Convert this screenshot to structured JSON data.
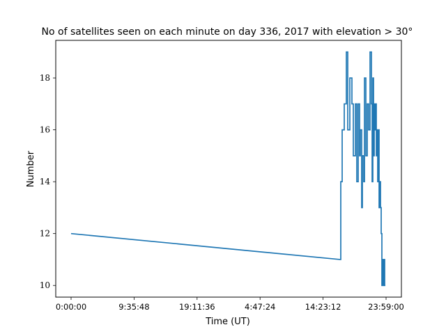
{
  "chart_data": {
    "type": "line",
    "title": "No of satellites seen on each minute on day 336, 2017 with elevation > 30°",
    "xlabel": "Time (UT)",
    "ylabel": "Number",
    "x_tick_labels": [
      "0:00:00",
      "9:35:48",
      "19:11:36",
      "4:47:24",
      "14:23:12",
      "23:59:00"
    ],
    "y_ticks": [
      10,
      12,
      14,
      16,
      18
    ],
    "y_tick_labels": [
      "10",
      "12",
      "14",
      "16",
      "18"
    ],
    "ylim": [
      9.55,
      19.45
    ],
    "grid": false,
    "legend": "none",
    "color": "#1f77b4",
    "series": [
      {
        "values": [
          12,
          11,
          14,
          16,
          17,
          19,
          16,
          18,
          17,
          15,
          17,
          14,
          17,
          15,
          16,
          13,
          15,
          14,
          18,
          15,
          17,
          16,
          19,
          17,
          14,
          18,
          15,
          17,
          16,
          17,
          15,
          16,
          14,
          16,
          13,
          14,
          13,
          12,
          10,
          11,
          10,
          11,
          10,
          10
        ]
      }
    ]
  }
}
